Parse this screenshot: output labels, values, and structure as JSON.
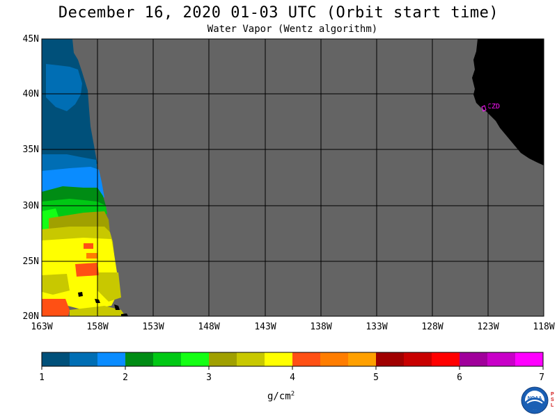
{
  "title": "December 16, 2020  01-03 UTC  (Orbit start time)",
  "subtitle": "Water Vapor (Wentz algorithm)",
  "lat_labels": [
    "45N",
    "40N",
    "35N",
    "30N",
    "25N",
    "20N"
  ],
  "lon_labels": [
    "163W",
    "158W",
    "153W",
    "148W",
    "143W",
    "138W",
    "133W",
    "128W",
    "123W",
    "118W"
  ],
  "station_label": "CZD",
  "colorbar": {
    "colors": [
      "#00507a",
      "#006eb4",
      "#0a8cff",
      "#008c14",
      "#00c814",
      "#14ff14",
      "#a0a000",
      "#c8c800",
      "#ffff00",
      "#ff5014",
      "#ff7d00",
      "#ffa000",
      "#a00000",
      "#c80000",
      "#ff0000",
      "#a0009b",
      "#c800c8",
      "#ff00ff"
    ],
    "tick_labels": [
      "1",
      "2",
      "3",
      "4",
      "5",
      "6",
      "7"
    ],
    "units": "g/cm",
    "units_exp": "2"
  },
  "colors": {
    "land": "#000000",
    "nodata": "#646464",
    "grid": "#000000",
    "station": "#ff14ff"
  },
  "logo": {
    "name": "NOAA",
    "side_text": [
      "P",
      "S",
      "L"
    ]
  }
}
